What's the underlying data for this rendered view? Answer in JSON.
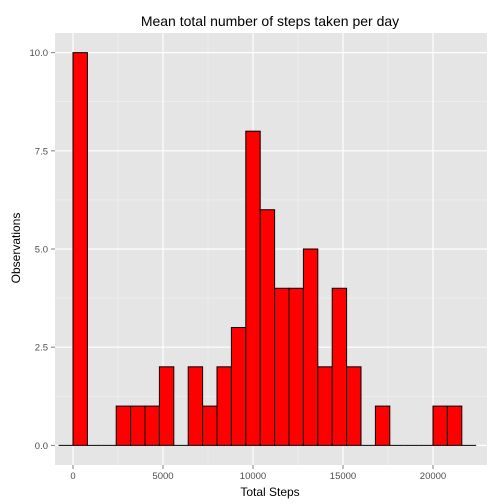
{
  "chart_data": {
    "type": "bar",
    "title": "Mean total number of steps taken per day",
    "xlabel": "Total Steps",
    "ylabel": "Observations",
    "xlim": [
      -1000,
      23000
    ],
    "ylim": [
      -0.5,
      10.5
    ],
    "bin_width": 800,
    "x_ticks": [
      0,
      5000,
      10000,
      15000,
      20000
    ],
    "x_tick_labels": [
      "0",
      "5000",
      "10000",
      "15000",
      "20000"
    ],
    "y_ticks": [
      0,
      2.5,
      5,
      7.5,
      10
    ],
    "y_tick_labels": [
      "0.0",
      "2.5",
      "5.0",
      "7.5",
      "10.0"
    ],
    "grid": true,
    "bars": [
      {
        "x": -400,
        "value": 0
      },
      {
        "x": 400,
        "value": 10
      },
      {
        "x": 1200,
        "value": 0
      },
      {
        "x": 2000,
        "value": 0
      },
      {
        "x": 2800,
        "value": 1
      },
      {
        "x": 3600,
        "value": 1
      },
      {
        "x": 4400,
        "value": 1
      },
      {
        "x": 5200,
        "value": 2
      },
      {
        "x": 6000,
        "value": 0
      },
      {
        "x": 6800,
        "value": 2
      },
      {
        "x": 7600,
        "value": 1
      },
      {
        "x": 8400,
        "value": 2
      },
      {
        "x": 9200,
        "value": 3
      },
      {
        "x": 10000,
        "value": 8
      },
      {
        "x": 10800,
        "value": 6
      },
      {
        "x": 11600,
        "value": 4
      },
      {
        "x": 12400,
        "value": 4
      },
      {
        "x": 13200,
        "value": 5
      },
      {
        "x": 14000,
        "value": 2
      },
      {
        "x": 14800,
        "value": 4
      },
      {
        "x": 15600,
        "value": 2
      },
      {
        "x": 16400,
        "value": 0
      },
      {
        "x": 17200,
        "value": 1
      },
      {
        "x": 18000,
        "value": 0
      },
      {
        "x": 18800,
        "value": 0
      },
      {
        "x": 19600,
        "value": 0
      },
      {
        "x": 20400,
        "value": 1
      },
      {
        "x": 21200,
        "value": 1
      },
      {
        "x": 22000,
        "value": 0
      }
    ],
    "colors": {
      "panel": "#e5e5e5",
      "grid_major": "#ffffff",
      "grid_minor": "#f2f2f2",
      "bar_fill": "#ff0000",
      "bar_outline": "#000000",
      "tick": "#7f7f7f"
    }
  }
}
